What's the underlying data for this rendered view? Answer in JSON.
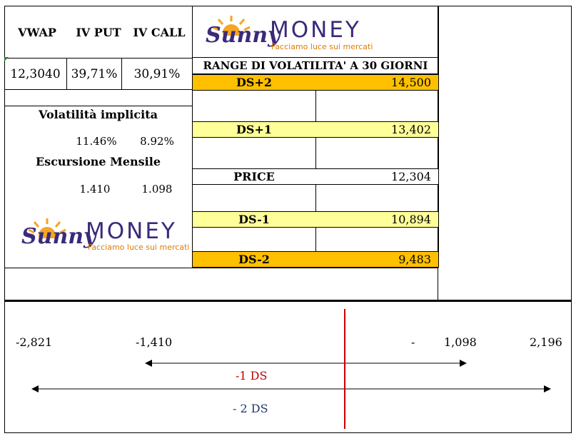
{
  "summary": {
    "headers": [
      "VWAP",
      "IV PUT",
      "IV CALL"
    ],
    "values": [
      "12,3040",
      "39,71%",
      "30,91%"
    ],
    "implied_vol_title": "Volatilità implicita",
    "implied_vol": [
      "11.46%",
      "8.92%"
    ],
    "monthly_title": "Escursione Mensile",
    "monthly": [
      "1.410",
      "1.098"
    ]
  },
  "logo": {
    "brand_script": "Sunny",
    "brand_word": "MONEY",
    "tagline": "Facciamo luce sui mercati"
  },
  "range": {
    "title": "RANGE DI VOLATILITA' A 30 GIORNI",
    "rows": [
      {
        "label": "DS+2",
        "value": "14,500",
        "color": "#ffc000"
      },
      {
        "label": "DS+1",
        "value": "13,402",
        "color": "#ffff99"
      },
      {
        "label": "PRICE",
        "value": "12,304",
        "color": "#ffffff"
      },
      {
        "label": "DS-1",
        "value": "10,894",
        "color": "#ffff99"
      },
      {
        "label": "DS-2",
        "value": "9,483",
        "color": "#ffc000"
      }
    ]
  },
  "bottom": {
    "n_left2": "-2,821",
    "n_left1": "-1,410",
    "n_tilde": "-",
    "n_right1": "1,098",
    "n_right2": "2,196",
    "label_1ds": "-1 DS",
    "label_2ds": "- 2 DS",
    "colors": {
      "price_line": "#cc0000",
      "label_1ds": "#c00000",
      "label_2ds": "#1f3864"
    }
  }
}
